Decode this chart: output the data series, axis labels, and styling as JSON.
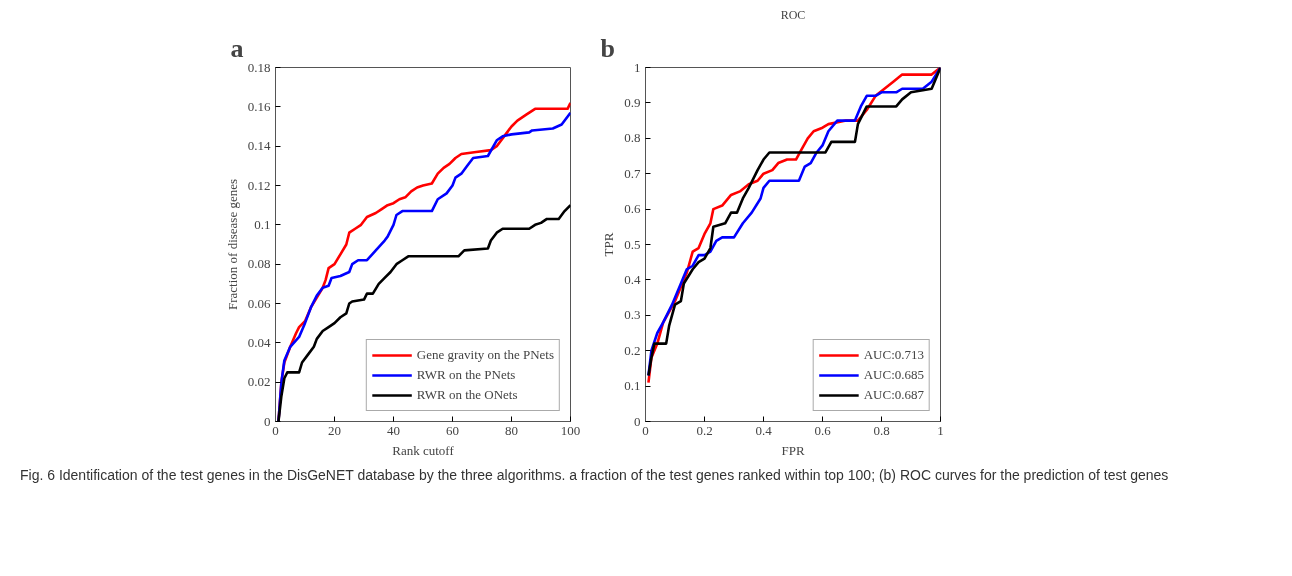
{
  "chart_data": [
    {
      "type": "line",
      "xlabel": "Rank cutoff",
      "ylabel": "Fraction of disease genes",
      "annotations": [
        "a",
        "Fig. 6 Identification of the test genes in the DisGeNET database by the three algorithms. a fraction of the test genes ranked within top 100; (b) ROC curves for the prediction of test genes"
      ],
      "xlim": [
        0,
        100
      ],
      "ylim": [
        0,
        0.18
      ],
      "xticks": [
        0,
        20,
        40,
        60,
        80,
        100
      ],
      "yticks": [
        0,
        0.02,
        0.04,
        0.06,
        0.08,
        0.1,
        0.12,
        0.14,
        0.16,
        0.18
      ],
      "grid": false,
      "legend": "bottom right",
      "marker": "none",
      "line_style": "solid",
      "series": [
        {
          "name": "Gene gravity on the PNets",
          "color": "#ff0000",
          "x": [
            1,
            2,
            3,
            5,
            7,
            8,
            10,
            12,
            14,
            16,
            17,
            18,
            20,
            22,
            24,
            25,
            27,
            29,
            31,
            34,
            36,
            38,
            40,
            42,
            44,
            46,
            48,
            50,
            53,
            55,
            57,
            59,
            61,
            63,
            68,
            73,
            75,
            78,
            80,
            82,
            85,
            88,
            99,
            100
          ],
          "values": [
            0,
            0.02,
            0.03,
            0.038,
            0.045,
            0.048,
            0.051,
            0.058,
            0.063,
            0.068,
            0.072,
            0.078,
            0.08,
            0.085,
            0.09,
            0.096,
            0.098,
            0.1,
            0.104,
            0.106,
            0.108,
            0.11,
            0.111,
            0.113,
            0.114,
            0.117,
            0.119,
            0.12,
            0.121,
            0.126,
            0.129,
            0.131,
            0.134,
            0.136,
            0.137,
            0.138,
            0.14,
            0.146,
            0.15,
            0.153,
            0.156,
            0.159,
            0.159,
            0.162
          ]
        },
        {
          "name": "RWR on the PNets",
          "color": "#0000ff",
          "x": [
            1,
            2,
            3,
            5,
            8,
            10,
            12,
            14,
            16,
            18,
            19,
            22,
            25,
            26,
            28,
            31,
            34,
            37,
            38,
            40,
            41,
            43,
            53,
            55,
            58,
            60,
            61,
            63,
            65,
            67,
            72,
            75,
            77,
            80,
            86,
            87,
            94,
            97,
            100
          ],
          "values": [
            0,
            0.02,
            0.031,
            0.038,
            0.043,
            0.05,
            0.058,
            0.064,
            0.068,
            0.069,
            0.073,
            0.074,
            0.076,
            0.08,
            0.082,
            0.082,
            0.087,
            0.092,
            0.094,
            0.1,
            0.105,
            0.107,
            0.107,
            0.113,
            0.116,
            0.12,
            0.124,
            0.126,
            0.13,
            0.134,
            0.135,
            0.143,
            0.145,
            0.146,
            0.147,
            0.148,
            0.149,
            0.151,
            0.157
          ]
        },
        {
          "name": "RWR on the ONets",
          "color": "#000000",
          "x": [
            1,
            2,
            3,
            4,
            8,
            9,
            11,
            13,
            14,
            16,
            18,
            20,
            22,
            24,
            25,
            26,
            30,
            31,
            33,
            35,
            37,
            39,
            41,
            43,
            45,
            62,
            64,
            72,
            73,
            75,
            77,
            86,
            88,
            90,
            92,
            96,
            98,
            100
          ],
          "values": [
            0,
            0.013,
            0.022,
            0.025,
            0.025,
            0.03,
            0.034,
            0.038,
            0.042,
            0.046,
            0.048,
            0.05,
            0.053,
            0.055,
            0.06,
            0.061,
            0.062,
            0.065,
            0.065,
            0.07,
            0.073,
            0.076,
            0.08,
            0.082,
            0.084,
            0.084,
            0.087,
            0.088,
            0.092,
            0.096,
            0.098,
            0.098,
            0.1,
            0.101,
            0.103,
            0.103,
            0.107,
            0.11
          ]
        }
      ]
    },
    {
      "type": "line",
      "title": "ROC",
      "xlabel": "FPR",
      "ylabel": "TPR",
      "annotations": [
        "b"
      ],
      "xlim": [
        0,
        1
      ],
      "ylim": [
        0,
        1
      ],
      "xticks": [
        0,
        0.2,
        0.4,
        0.6,
        0.8,
        1
      ],
      "yticks": [
        0,
        0.1,
        0.2,
        0.3,
        0.4,
        0.5,
        0.6,
        0.7,
        0.8,
        0.9,
        1
      ],
      "grid": false,
      "legend": "bottom right",
      "marker": "none",
      "line_style": "solid",
      "series": [
        {
          "name": "AUC:0.713",
          "color": "#ff0000",
          "x": [
            0.01,
            0.02,
            0.04,
            0.06,
            0.08,
            0.1,
            0.12,
            0.14,
            0.16,
            0.18,
            0.2,
            0.22,
            0.23,
            0.26,
            0.29,
            0.32,
            0.35,
            0.38,
            0.4,
            0.43,
            0.45,
            0.48,
            0.51,
            0.53,
            0.55,
            0.57,
            0.6,
            0.62,
            0.68,
            0.72,
            0.75,
            0.78,
            0.81,
            0.84,
            0.87,
            0.97,
            1
          ],
          "values": [
            0.11,
            0.18,
            0.22,
            0.28,
            0.31,
            0.34,
            0.38,
            0.42,
            0.48,
            0.49,
            0.53,
            0.56,
            0.6,
            0.61,
            0.64,
            0.65,
            0.67,
            0.68,
            0.7,
            0.71,
            0.73,
            0.74,
            0.74,
            0.77,
            0.8,
            0.82,
            0.83,
            0.84,
            0.85,
            0.85,
            0.88,
            0.92,
            0.94,
            0.96,
            0.98,
            0.98,
            1
          ]
        },
        {
          "name": "AUC:0.685",
          "color": "#0000ff",
          "x": [
            0.01,
            0.02,
            0.04,
            0.06,
            0.09,
            0.12,
            0.14,
            0.16,
            0.18,
            0.2,
            0.22,
            0.24,
            0.26,
            0.3,
            0.33,
            0.36,
            0.39,
            0.4,
            0.42,
            0.52,
            0.54,
            0.56,
            0.58,
            0.6,
            0.62,
            0.65,
            0.71,
            0.73,
            0.75,
            0.78,
            0.8,
            0.85,
            0.87,
            0.94,
            0.97,
            1
          ],
          "values": [
            0.13,
            0.2,
            0.25,
            0.28,
            0.33,
            0.39,
            0.43,
            0.44,
            0.47,
            0.47,
            0.48,
            0.51,
            0.52,
            0.52,
            0.56,
            0.59,
            0.63,
            0.66,
            0.68,
            0.68,
            0.72,
            0.73,
            0.76,
            0.78,
            0.82,
            0.85,
            0.85,
            0.89,
            0.92,
            0.92,
            0.93,
            0.93,
            0.94,
            0.94,
            0.96,
            1
          ]
        },
        {
          "name": "AUC:0.687",
          "color": "#000000",
          "x": [
            0.01,
            0.02,
            0.03,
            0.07,
            0.08,
            0.1,
            0.12,
            0.13,
            0.16,
            0.18,
            0.2,
            0.22,
            0.23,
            0.27,
            0.29,
            0.31,
            0.33,
            0.35,
            0.38,
            0.4,
            0.42,
            0.61,
            0.63,
            0.71,
            0.72,
            0.75,
            0.85,
            0.87,
            0.9,
            0.97,
            1
          ],
          "values": [
            0.13,
            0.18,
            0.22,
            0.22,
            0.27,
            0.33,
            0.34,
            0.39,
            0.43,
            0.45,
            0.46,
            0.49,
            0.55,
            0.56,
            0.59,
            0.59,
            0.63,
            0.66,
            0.71,
            0.74,
            0.76,
            0.76,
            0.79,
            0.79,
            0.84,
            0.89,
            0.89,
            0.91,
            0.93,
            0.94,
            1
          ]
        }
      ]
    }
  ]
}
